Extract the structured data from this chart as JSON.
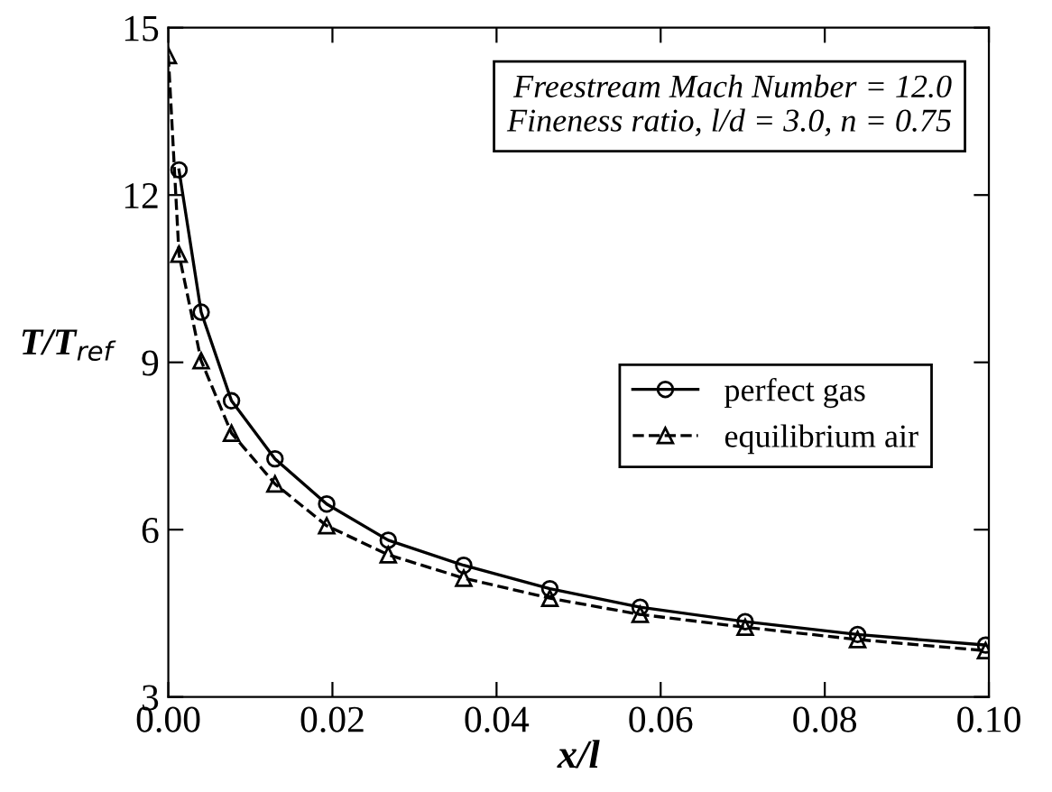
{
  "chart_data": {
    "type": "line",
    "xlabel": "x/l",
    "ylabel": "T/T$_{ref}$",
    "annotations": [
      "Freestream Mach Number = 12.0\nFineness ratio, l/d = 3.0, n = 0.75"
    ],
    "xlim": [
      0,
      0.1
    ],
    "xticks": [
      {
        "value": 0,
        "label": "0.00"
      },
      0.02,
      0.04,
      0.06,
      0.08,
      {
        "value": 0.1,
        "label": "0.10"
      }
    ],
    "ylim": [
      3,
      15
    ],
    "yticks": [
      3,
      6,
      9,
      12,
      15
    ],
    "legend": "right",
    "grid": false,
    "series": [
      {
        "name": "perfect gas",
        "color": "#000000",
        "marker": "circle",
        "line_style": "solid",
        "x": [
          0.0013,
          0.004,
          0.0077,
          0.013,
          0.0193,
          0.0268,
          0.036,
          0.0465,
          0.0575,
          0.0703,
          0.084,
          0.0996
        ],
        "values": [
          12.45,
          9.9,
          8.31,
          7.27,
          6.46,
          5.81,
          5.36,
          4.94,
          4.61,
          4.35,
          4.12,
          3.93
        ]
      },
      {
        "name": "equilibrium air",
        "color": "#000000",
        "marker": "triangle",
        "line_style": "dashed",
        "x": [
          0.0,
          0.0013,
          0.004,
          0.0077,
          0.013,
          0.0193,
          0.0268,
          0.036,
          0.0465,
          0.0575,
          0.0703,
          0.084,
          0.0996
        ],
        "values": [
          14.5,
          10.94,
          9.03,
          7.73,
          6.82,
          6.07,
          5.55,
          5.13,
          4.77,
          4.48,
          4.25,
          4.03,
          3.83
        ]
      }
    ]
  }
}
